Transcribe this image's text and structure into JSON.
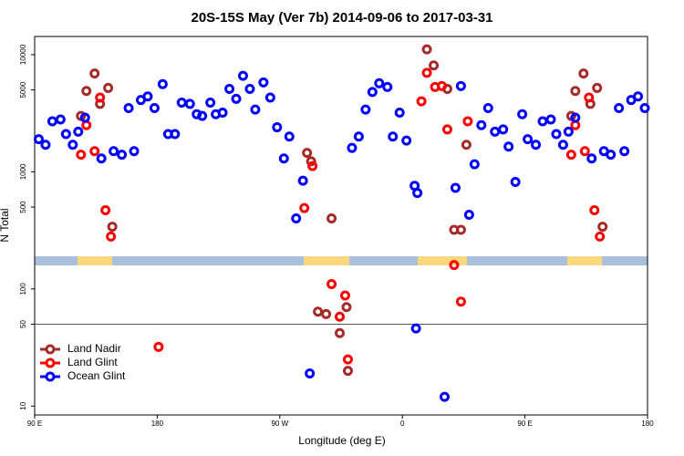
{
  "chart_data": {
    "type": "scatter",
    "title": "20S-15S May (Ver 7b)   2014-09-06 to 2017-03-31",
    "x_label": "Longitude (deg E)",
    "y_label": "N Total",
    "xlim": [
      90,
      540
    ],
    "ylim": [
      8.4,
      14300
    ],
    "log_y": true,
    "xticks": [
      {
        "value": 90,
        "label": "90 E"
      },
      180,
      {
        "value": 270,
        "label": "90 W"
      },
      {
        "value": 360,
        "label": "0"
      },
      {
        "value": 450,
        "label": "90 E"
      },
      {
        "value": 540,
        "label": "180"
      }
    ],
    "yticks": [
      10,
      50,
      100,
      500,
      1000,
      5000,
      10000
    ],
    "reference_line": 50,
    "legend": "bottom-left",
    "series": [
      {
        "name": "Land Nadir",
        "color": "#a52a2a",
        "x": [
          124,
          134,
          128,
          138,
          144,
          147,
          290,
          293,
          298,
          304,
          308,
          314,
          319,
          320,
          378,
          383,
          393,
          398,
          403,
          407,
          484,
          493,
          487,
          498,
          503,
          507
        ],
        "values": [
          3000,
          6900,
          4900,
          3800,
          5200,
          340,
          1450,
          1230,
          64,
          61,
          400,
          42,
          70,
          20,
          11100,
          8100,
          5100,
          320,
          320,
          1700,
          3000,
          6900,
          4900,
          3800,
          5200,
          340
        ]
      },
      {
        "name": "Land Glint",
        "color": "#ff0000",
        "x": [
          128,
          124,
          134,
          138,
          142,
          146,
          181,
          288,
          294,
          308,
          314,
          318,
          320,
          374,
          378,
          384,
          389,
          393,
          398,
          403,
          408,
          484,
          487,
          494,
          497,
          501,
          505
        ],
        "values": [
          2500,
          1400,
          1500,
          4300,
          470,
          280,
          32,
          490,
          1120,
          110,
          58,
          88,
          25,
          4000,
          7000,
          5300,
          5400,
          2300,
          160,
          78,
          2700,
          1400,
          2500,
          1500,
          4300,
          470,
          280
        ]
      },
      {
        "name": "Ocean Glint",
        "color": "#0000ff",
        "x": [
          93,
          98,
          103,
          109,
          113,
          118,
          122,
          127,
          139,
          148,
          154,
          159,
          163,
          168,
          173,
          178,
          184,
          188,
          193,
          198,
          204,
          209,
          213,
          219,
          223,
          228,
          233,
          238,
          243,
          248,
          252,
          258,
          263,
          268,
          273,
          277,
          282,
          287,
          292,
          323,
          328,
          333,
          338,
          343,
          349,
          353,
          358,
          363,
          369,
          371,
          370,
          391,
          399,
          403,
          409,
          413,
          418,
          423,
          428,
          434,
          438,
          443,
          448,
          452,
          458,
          463,
          469,
          473,
          478,
          482,
          487,
          499,
          508,
          513,
          519,
          523,
          528,
          533,
          538
        ],
        "values": [
          1900,
          1700,
          2700,
          2800,
          2100,
          1700,
          2200,
          2900,
          1300,
          1500,
          1400,
          3500,
          1500,
          4100,
          4400,
          3500,
          5600,
          2100,
          2100,
          3900,
          3800,
          3100,
          3000,
          3900,
          3100,
          3200,
          5100,
          4200,
          6600,
          5100,
          3400,
          5800,
          4300,
          2400,
          1300,
          2000,
          400,
          840,
          19,
          1600,
          2000,
          3400,
          4800,
          5700,
          5300,
          2000,
          3200,
          1850,
          760,
          660,
          46,
          12,
          730,
          5400,
          430,
          1160,
          2500,
          3500,
          2200,
          2300,
          1640,
          820,
          3100,
          1900,
          1700,
          2700,
          2800,
          2100,
          1700,
          2200,
          2900,
          1300,
          1500,
          1400,
          3500,
          1500,
          4100,
          4400,
          3500
        ]
      }
    ]
  }
}
